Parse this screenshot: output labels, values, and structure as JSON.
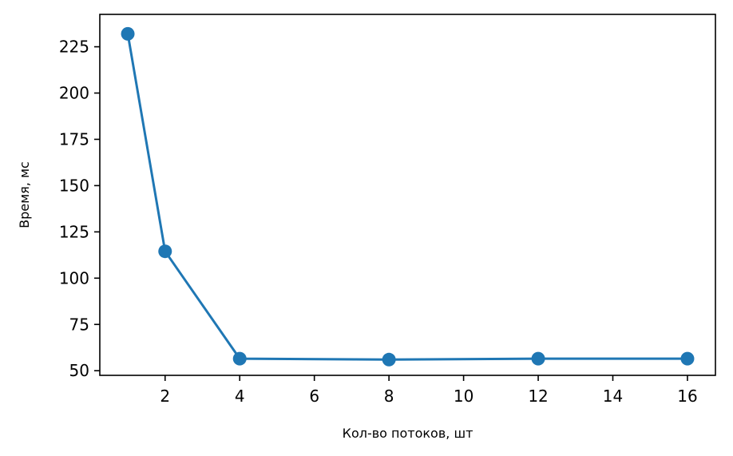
{
  "chart_data": {
    "type": "line",
    "title": "",
    "xlabel": "Кол-во потоков, шт",
    "ylabel": "Время, мс",
    "x": [
      1,
      2,
      4,
      8,
      12,
      16
    ],
    "series": [
      {
        "values": [
          232,
          114.5,
          56.5,
          56,
          56.5,
          56.5
        ],
        "color": "#1f77b4"
      }
    ],
    "xlim": [
      0.25,
      16.75
    ],
    "ylim": [
      47.5,
      242.5
    ],
    "xticks": [
      2,
      4,
      6,
      8,
      10,
      12,
      14,
      16
    ],
    "yticks": [
      50,
      75,
      100,
      125,
      150,
      175,
      200,
      225
    ],
    "grid": false,
    "legend": false
  }
}
